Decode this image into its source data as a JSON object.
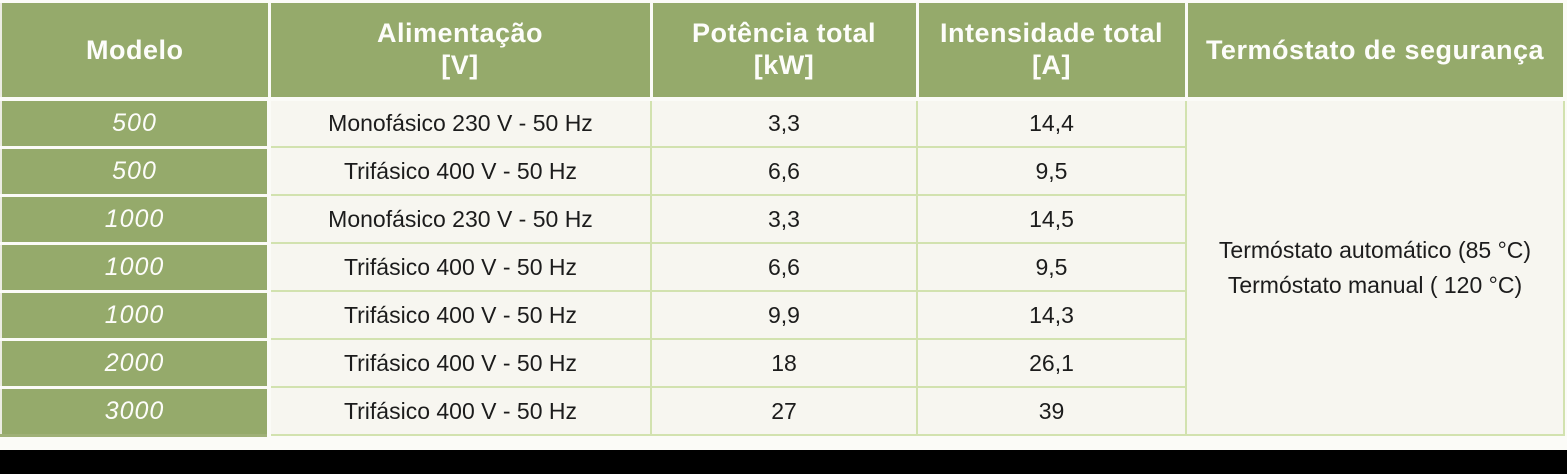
{
  "colors": {
    "header_green": "#95aa6b",
    "model_cell_green": "#95aa6b",
    "cell_background": "#f7f6f0",
    "grid_line_green": "#d2e2af",
    "separator_white": "#fbfbf7",
    "header_text": "#fdfdfa",
    "body_text": "#1c1c1c",
    "bottom_bar": "#000000"
  },
  "table": {
    "headers": [
      {
        "line1": "Modelo",
        "line2": ""
      },
      {
        "line1": "Alimentação",
        "line2": "[V]"
      },
      {
        "line1": "Potência total",
        "line2": "[kW]"
      },
      {
        "line1": "Intensidade total",
        "line2": "[A]"
      },
      {
        "line1": "Termóstato de segurança",
        "line2": ""
      }
    ],
    "rows": [
      {
        "modelo": "500",
        "alimentacao": "Monofásico 230 V - 50 Hz",
        "potencia": "3,3",
        "intensidade": "14,4"
      },
      {
        "modelo": "500",
        "alimentacao": "Trifásico 400 V - 50 Hz",
        "potencia": "6,6",
        "intensidade": "9,5"
      },
      {
        "modelo": "1000",
        "alimentacao": "Monofásico 230 V - 50 Hz",
        "potencia": "3,3",
        "intensidade": "14,5"
      },
      {
        "modelo": "1000",
        "alimentacao": "Trifásico 400 V - 50 Hz",
        "potencia": "6,6",
        "intensidade": "9,5"
      },
      {
        "modelo": "1000",
        "alimentacao": "Trifásico 400 V - 50 Hz",
        "potencia": "9,9",
        "intensidade": "14,3"
      },
      {
        "modelo": "2000",
        "alimentacao": "Trifásico 400 V - 50 Hz",
        "potencia": "18",
        "intensidade": "26,1"
      },
      {
        "modelo": "3000",
        "alimentacao": "Trifásico 400 V - 50 Hz",
        "potencia": "27",
        "intensidade": "39"
      }
    ],
    "thermostat": {
      "line1": "Termóstato automático (85 °C)",
      "line2": "Termóstato manual ( 120 °C)"
    }
  }
}
